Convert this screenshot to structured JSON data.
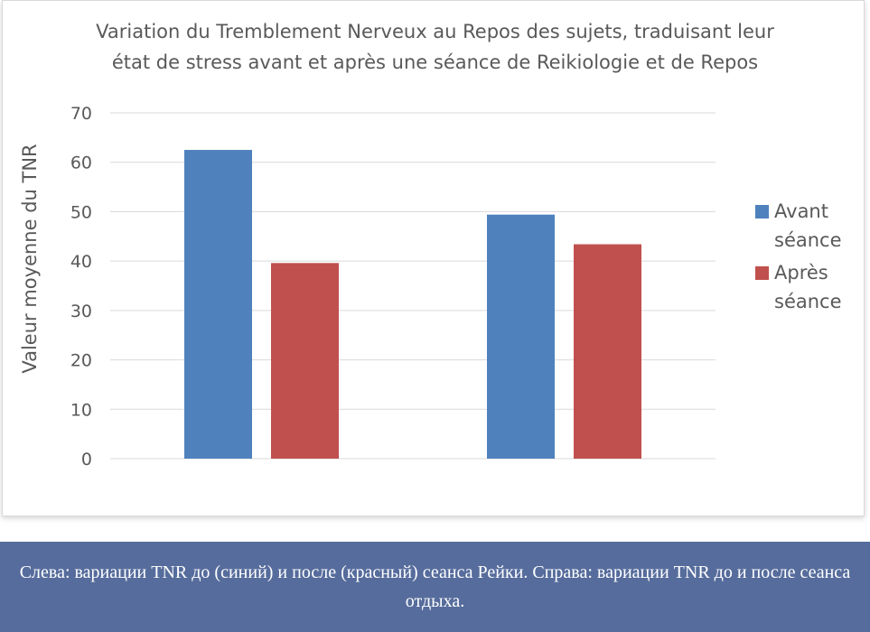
{
  "chart_data": {
    "type": "bar",
    "title": "Variation du Tremblement Nerveux au Repos des sujets, traduisant leur état de stress avant et après une séance de Reikiologie et de Repos",
    "xlabel": "",
    "ylabel": "Valeur moyenne du TNR",
    "ylim": [
      0,
      70
    ],
    "yticks": [
      "0",
      "10",
      "20",
      "30",
      "40",
      "50",
      "60",
      "70"
    ],
    "categories": [
      "",
      ""
    ],
    "series": [
      {
        "name": "Avant séance",
        "color": "#4f81bd",
        "values": [
          62.5,
          49.4
        ]
      },
      {
        "name": "Après séance",
        "color": "#c0504d",
        "values": [
          39.6,
          43.4
        ]
      }
    ],
    "grid": true,
    "legend_position": "right"
  },
  "caption": "Слева: вариации TNR до (синий) и после (красный) сеанса Рейки. Справа: вариации TNR до и после сеанса отдыха.",
  "colors": {
    "gridline": "#d9d9d9",
    "text": "#595959",
    "caption_bg": "#566c9c"
  }
}
